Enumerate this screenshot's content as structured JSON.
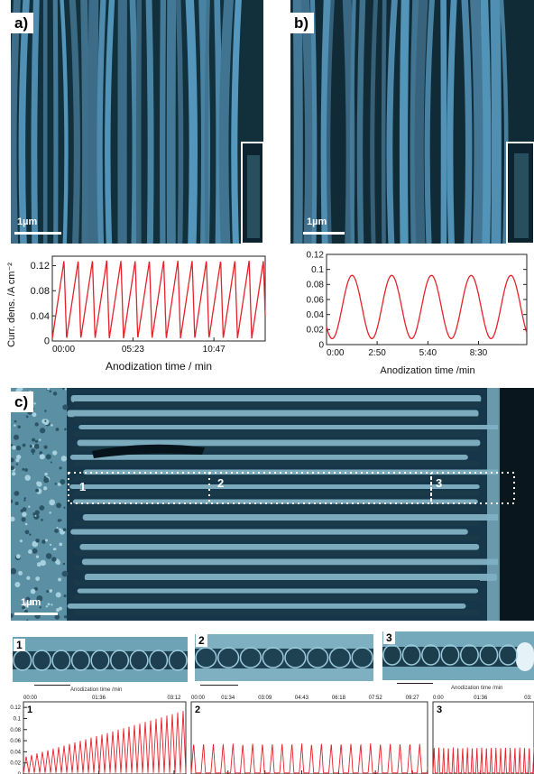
{
  "figure": {
    "panel_a": {
      "letter": "a)",
      "scale": "1µm"
    },
    "panel_b": {
      "letter": "b)",
      "scale": "1µm"
    },
    "panel_c": {
      "letter": "c)",
      "scale": "1µm",
      "region_labels": [
        "1",
        "2",
        "3"
      ]
    },
    "strip_labels": [
      "1",
      "2",
      "3"
    ],
    "colors": {
      "sem_dark": "#0f2630",
      "sem_light": "#8cc0d2",
      "curve": "#e8202a"
    }
  },
  "chart_data": [
    {
      "id": "chart-a",
      "type": "line",
      "title": "",
      "xlabel": "Anodization time / min",
      "ylabel": "Curr. dens. /A cm⁻²",
      "x_tick_labels": [
        "00:00",
        "05:23",
        "10:47"
      ],
      "x_tick_minutes": [
        0,
        5.38,
        10.78
      ],
      "xlim": [
        0,
        14.2
      ],
      "ylim": [
        0,
        0.135
      ],
      "y_ticks": [
        "0",
        "0.04",
        "0.08",
        "0.12"
      ],
      "y_tick_values": [
        0,
        0.04,
        0.08,
        0.12
      ],
      "pattern": "sawtooth",
      "series": [
        {
          "period_min": 0.95,
          "min": 0.004,
          "max": 0.128,
          "start": 0.03,
          "color": "#e8202a"
        }
      ]
    },
    {
      "id": "chart-b",
      "type": "line",
      "title": "",
      "xlabel": "Anodization time /min",
      "ylabel": "",
      "x_tick_labels": [
        "0:00",
        "2:50",
        "5:40",
        "8:30"
      ],
      "x_tick_minutes": [
        0,
        2.83,
        5.67,
        8.5
      ],
      "xlim": [
        0,
        11.2
      ],
      "ylim": [
        0,
        0.12
      ],
      "y_ticks": [
        "0",
        "0.02",
        "0.04",
        "0.06",
        "0.08",
        "0.1",
        "0.12"
      ],
      "y_tick_values": [
        0,
        0.02,
        0.04,
        0.06,
        0.08,
        0.1,
        0.12
      ],
      "pattern": "sine",
      "series": [
        {
          "period_min": 2.22,
          "min": 0.008,
          "max": 0.092,
          "start": 0.01,
          "color": "#e8202a"
        }
      ]
    },
    {
      "id": "chart-c1",
      "type": "line",
      "title": "",
      "xlabel": "Anodization time /min",
      "ylabel": "",
      "label": "1",
      "x_tick_labels": [
        "00:00",
        "01:36",
        "03:12"
      ],
      "x_tick_minutes": [
        0,
        1.6,
        3.2
      ],
      "xlim": [
        0,
        3.45
      ],
      "ylim": [
        0,
        0.13
      ],
      "y_ticks": [
        "0",
        "0.02",
        "0.04",
        "0.06",
        "0.08",
        "0.1",
        "0.12"
      ],
      "y_tick_values": [
        0,
        0.02,
        0.04,
        0.06,
        0.08,
        0.1,
        0.12
      ],
      "pattern": "ramp",
      "series": [
        {
          "period_min": 0.115,
          "min": 0.002,
          "max_start": 0.03,
          "max_end": 0.115,
          "color": "#e8202a"
        }
      ]
    },
    {
      "id": "chart-c2",
      "type": "line",
      "title": "",
      "xlabel": "",
      "ylabel": "",
      "label": "2",
      "x_tick_labels": [
        "00:00",
        "01:34",
        "03:09",
        "04:43",
        "06:18",
        "07:52",
        "09:27"
      ],
      "x_tick_minutes": [
        0,
        1.57,
        3.15,
        4.72,
        6.3,
        7.87,
        9.45
      ],
      "xlim": [
        0,
        10.1
      ],
      "ylim": [
        0,
        0.13
      ],
      "pattern": "spikes",
      "series": [
        {
          "period_min": 0.42,
          "min": 0.002,
          "max": 0.055,
          "color": "#e8202a"
        }
      ]
    },
    {
      "id": "chart-c3",
      "type": "line",
      "title": "",
      "xlabel": "Anodization time /min",
      "ylabel": "",
      "label": "3",
      "x_tick_labels": [
        "0:00",
        "01:36",
        "03:"
      ],
      "x_tick_minutes": [
        0,
        1.6,
        3.2
      ],
      "xlim": [
        0,
        3.4
      ],
      "ylim": [
        0,
        0.13
      ],
      "pattern": "spikes",
      "series": [
        {
          "period_min": 0.16,
          "min": 0.002,
          "max": 0.048,
          "color": "#e8202a"
        }
      ]
    }
  ]
}
